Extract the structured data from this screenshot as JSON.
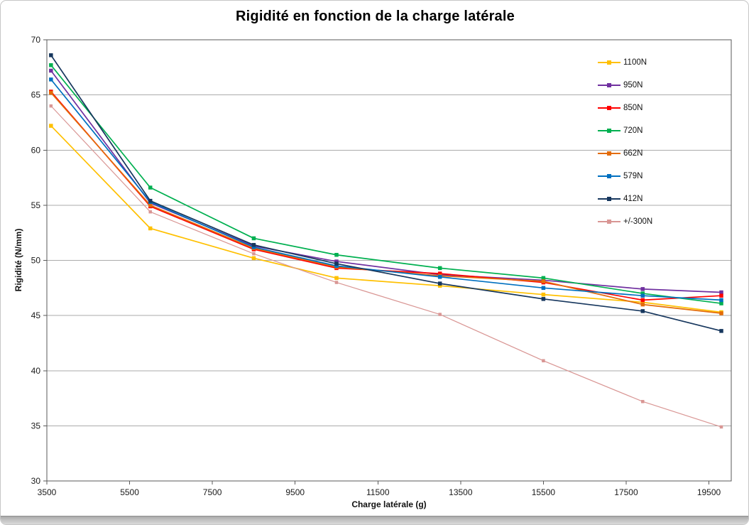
{
  "chart_data": {
    "type": "line",
    "title": "Rigidité en fonction de la charge latérale",
    "xlabel": "Charge latérale (g)",
    "ylabel": "Rigidité (N/mm)",
    "xlim": [
      3500,
      20040
    ],
    "ylim": [
      30,
      70
    ],
    "x_ticks": [
      3500,
      5500,
      7500,
      9500,
      11500,
      13500,
      15500,
      17500,
      19500
    ],
    "y_ticks": [
      30,
      35,
      40,
      45,
      50,
      55,
      60,
      65,
      70
    ],
    "grid": "horizontal",
    "legend_position": "upper-right-inside",
    "x": [
      3600,
      6000,
      8500,
      10500,
      13000,
      15500,
      17900,
      19800
    ],
    "series": [
      {
        "name": "1100N",
        "color": "#FFC000",
        "values": [
          62.2,
          52.9,
          50.2,
          48.4,
          47.7,
          46.9,
          46.2,
          45.3
        ]
      },
      {
        "name": "950N",
        "color": "#7030A0",
        "values": [
          67.2,
          55.2,
          51.3,
          49.9,
          48.7,
          48.2,
          47.4,
          47.1
        ]
      },
      {
        "name": "850N",
        "color": "#FF0000",
        "values": [
          65.3,
          54.9,
          51.0,
          49.3,
          48.8,
          48.0,
          46.4,
          46.8
        ]
      },
      {
        "name": "720N",
        "color": "#00B050",
        "values": [
          67.7,
          56.6,
          52.0,
          50.5,
          49.3,
          48.4,
          47.0,
          46.1
        ]
      },
      {
        "name": "662N",
        "color": "#E36C0A",
        "values": [
          65.2,
          55.0,
          51.1,
          49.4,
          48.6,
          48.1,
          46.0,
          45.2
        ]
      },
      {
        "name": "579N",
        "color": "#0070C0",
        "values": [
          66.4,
          55.3,
          51.2,
          49.5,
          48.5,
          47.5,
          46.8,
          46.4
        ]
      },
      {
        "name": "412N",
        "color": "#17375E",
        "values": [
          68.6,
          55.4,
          51.4,
          49.7,
          47.9,
          46.5,
          45.4,
          43.6
        ]
      },
      {
        "name": "+/-300N",
        "color": "#D99694",
        "values": [
          64.0,
          54.4,
          50.6,
          48.0,
          45.1,
          40.9,
          37.2,
          34.9
        ]
      }
    ],
    "colors": {
      "gridline": "#ABABAB",
      "plot_border": "#595959",
      "text": "#1a1a1a"
    }
  }
}
